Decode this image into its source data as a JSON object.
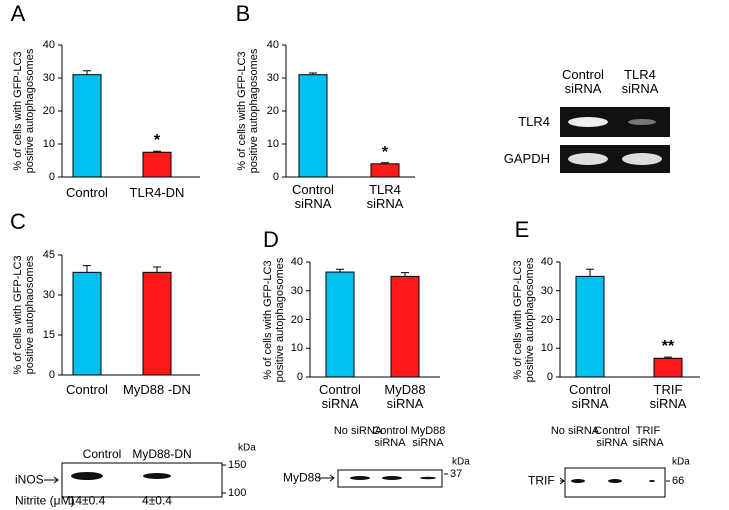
{
  "chart_data": [
    {
      "type": "bar",
      "panel": "A",
      "ylabel": [
        "% of cells with GFP-LC3",
        "positive autophagosomes"
      ],
      "categories": [
        "Control",
        "TLR4-DN"
      ],
      "values": [
        31,
        7.5
      ],
      "errors": [
        1.2,
        0.3
      ],
      "colors": [
        "#00c0f0",
        "#ff1a1a"
      ],
      "ylim": [
        0,
        40
      ],
      "yticks": [
        0,
        10,
        20,
        30,
        40
      ],
      "annotation": "*"
    },
    {
      "type": "bar",
      "panel": "B",
      "ylabel": [
        "% of cells with GFP-LC3",
        "positive autophagosomes"
      ],
      "categories": [
        "Control siRNA",
        "TLR4 siRNA"
      ],
      "values": [
        31,
        4
      ],
      "errors": [
        0.5,
        0.3
      ],
      "colors": [
        "#00c0f0",
        "#ff1a1a"
      ],
      "ylim": [
        0,
        40
      ],
      "yticks": [
        0,
        10,
        20,
        30,
        40
      ],
      "annotation": "*",
      "blot": {
        "lanes": [
          "Control siRNA",
          "TLR4 siRNA"
        ],
        "rows": [
          "TLR4",
          "GAPDH"
        ]
      }
    },
    {
      "type": "bar",
      "panel": "C",
      "ylabel": [
        "% of cells with GFP-LC3",
        "positive autophaosomes"
      ],
      "categories": [
        "Control",
        "MyD88 -DN"
      ],
      "values": [
        38.5,
        38.5
      ],
      "errors": [
        2.5,
        2
      ],
      "colors": [
        "#00c0f0",
        "#ff1a1a"
      ],
      "ylim": [
        0,
        45
      ],
      "yticks": [
        0,
        15,
        30,
        45
      ],
      "blot": {
        "lanes": [
          "Control",
          "MyD88-DN"
        ],
        "unit": "kDa",
        "rows": [
          "iNOS"
        ],
        "markers": [
          "150",
          "100"
        ],
        "nitrite_label": "Nitrite (μM)",
        "nitrite_values": [
          "14±0.4",
          "4±0.4"
        ]
      }
    },
    {
      "type": "bar",
      "panel": "D",
      "ylabel": [
        "% of cells with GFP-LC3",
        "positive autophagosomes"
      ],
      "categories": [
        "Control siRNA",
        "MyD88 siRNA"
      ],
      "values": [
        36.5,
        35
      ],
      "errors": [
        1,
        1.3
      ],
      "colors": [
        "#00c0f0",
        "#ff1a1a"
      ],
      "ylim": [
        0,
        40
      ],
      "yticks": [
        0,
        10,
        20,
        30,
        40
      ],
      "blot": {
        "lanes": [
          "No siRNA",
          "Control siRNA",
          "MyD88 siRNA"
        ],
        "unit": "kDa",
        "rows": [
          "MyD88"
        ],
        "markers": [
          "37"
        ]
      }
    },
    {
      "type": "bar",
      "panel": "E",
      "ylabel": [
        "% of cells with GFP-LC3",
        "positive autophagosomes"
      ],
      "categories": [
        "Control siRNA",
        "TRIF siRNA"
      ],
      "values": [
        35,
        6.5
      ],
      "errors": [
        2.5,
        0.4
      ],
      "colors": [
        "#00c0f0",
        "#ff1a1a"
      ],
      "ylim": [
        0,
        40
      ],
      "yticks": [
        0,
        10,
        20,
        30,
        40
      ],
      "annotation": "**",
      "blot": {
        "lanes": [
          "No siRNA",
          "Control siRNA",
          "TRIF siRNA"
        ],
        "unit": "kDa",
        "rows": [
          "TRIF"
        ],
        "markers": [
          "66"
        ]
      }
    }
  ]
}
